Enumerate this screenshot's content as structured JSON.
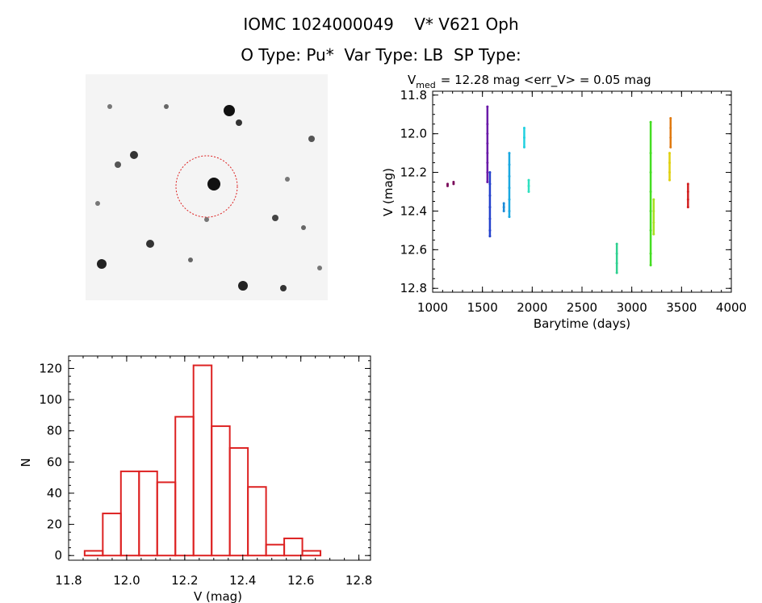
{
  "header": {
    "title": "IOMC 1024000049    V* V621 Oph",
    "subtitle": "O Type: Pu*  Var Type: LB  SP Type:"
  },
  "image_panel": {
    "type": "star-field",
    "target_marker_color": "#dd2222"
  },
  "chart_data": [
    {
      "type": "scatter",
      "title": "V_med = 12.28 mag <err_V> = 0.05 mag",
      "title_parts": {
        "v": "V",
        "med": "med",
        "rest": "= 12.28 mag <err_V> = 0.05 mag"
      },
      "xlabel": "Barytime (days)",
      "ylabel": "V (mag)",
      "xlim": [
        1000,
        4000
      ],
      "ylim": [
        12.82,
        11.78
      ],
      "y_inverted": true,
      "xticks": [
        1000,
        1500,
        2000,
        2500,
        3000,
        3500,
        4000
      ],
      "yticks": [
        "11.8",
        "12.0",
        "12.2",
        "12.4",
        "12.6",
        "12.8"
      ],
      "grid": false,
      "series": [
        {
          "color": "#7a0a5a",
          "x": 1150,
          "y": [
            12.26,
            12.27
          ]
        },
        {
          "color": "#7a0a5a",
          "x": 1210,
          "y": [
            12.25,
            12.26
          ]
        },
        {
          "color": "#6a1aa8",
          "x": 1550,
          "y": [
            11.86,
            11.95,
            12.0,
            12.05,
            12.1,
            12.15,
            12.2,
            12.25
          ]
        },
        {
          "color": "#2240cc",
          "x": 1575,
          "y": [
            12.2,
            12.26,
            12.32,
            12.38,
            12.44,
            12.5,
            12.53
          ]
        },
        {
          "color": "#1a8ad8",
          "x": 1715,
          "y": [
            12.36,
            12.38,
            12.4
          ]
        },
        {
          "color": "#1aa8e0",
          "x": 1770,
          "y": [
            12.1,
            12.16,
            12.22,
            12.28,
            12.34,
            12.4,
            12.43
          ]
        },
        {
          "color": "#22d0e0",
          "x": 1920,
          "y": [
            11.97,
            12.02,
            12.07
          ]
        },
        {
          "color": "#30e0c0",
          "x": 1965,
          "y": [
            12.24,
            12.27,
            12.3
          ]
        },
        {
          "color": "#30d090",
          "x": 2850,
          "y": [
            12.57,
            12.62,
            12.67,
            12.72
          ]
        },
        {
          "color": "#44dd22",
          "x": 3190,
          "y": [
            11.94,
            12.1,
            12.2,
            12.3,
            12.4,
            12.5,
            12.62,
            12.68
          ]
        },
        {
          "color": "#a8e020",
          "x": 3220,
          "y": [
            12.34,
            12.4,
            12.46,
            12.52
          ]
        },
        {
          "color": "#e0d010",
          "x": 3380,
          "y": [
            12.1,
            12.15,
            12.2,
            12.24
          ]
        },
        {
          "color": "#e07a10",
          "x": 3390,
          "y": [
            11.92,
            11.97,
            12.02,
            12.07
          ]
        },
        {
          "color": "#d22020",
          "x": 3565,
          "y": [
            12.26,
            12.3,
            12.34,
            12.38
          ]
        }
      ]
    },
    {
      "type": "bar",
      "xlabel": "V (mag)",
      "ylabel": "N",
      "xlim": [
        11.8,
        12.84
      ],
      "ylim": [
        -3,
        128
      ],
      "xticks": [
        "11.8",
        "12.0",
        "12.2",
        "12.4",
        "12.6",
        "12.8"
      ],
      "yticks": [
        "0",
        "20",
        "40",
        "60",
        "80",
        "100",
        "120"
      ],
      "bin_width": 0.0625,
      "bin_starts": [
        11.8552,
        11.9177,
        11.9802,
        12.0427,
        12.1052,
        12.1677,
        12.2302,
        12.2927,
        12.3552,
        12.4177,
        12.4802,
        12.5427,
        12.6052,
        12.6677
      ],
      "values": [
        3,
        27,
        54,
        54,
        47,
        89,
        122,
        83,
        69,
        44,
        7,
        11,
        3,
        0
      ],
      "bar_color": "#dd2222"
    }
  ]
}
